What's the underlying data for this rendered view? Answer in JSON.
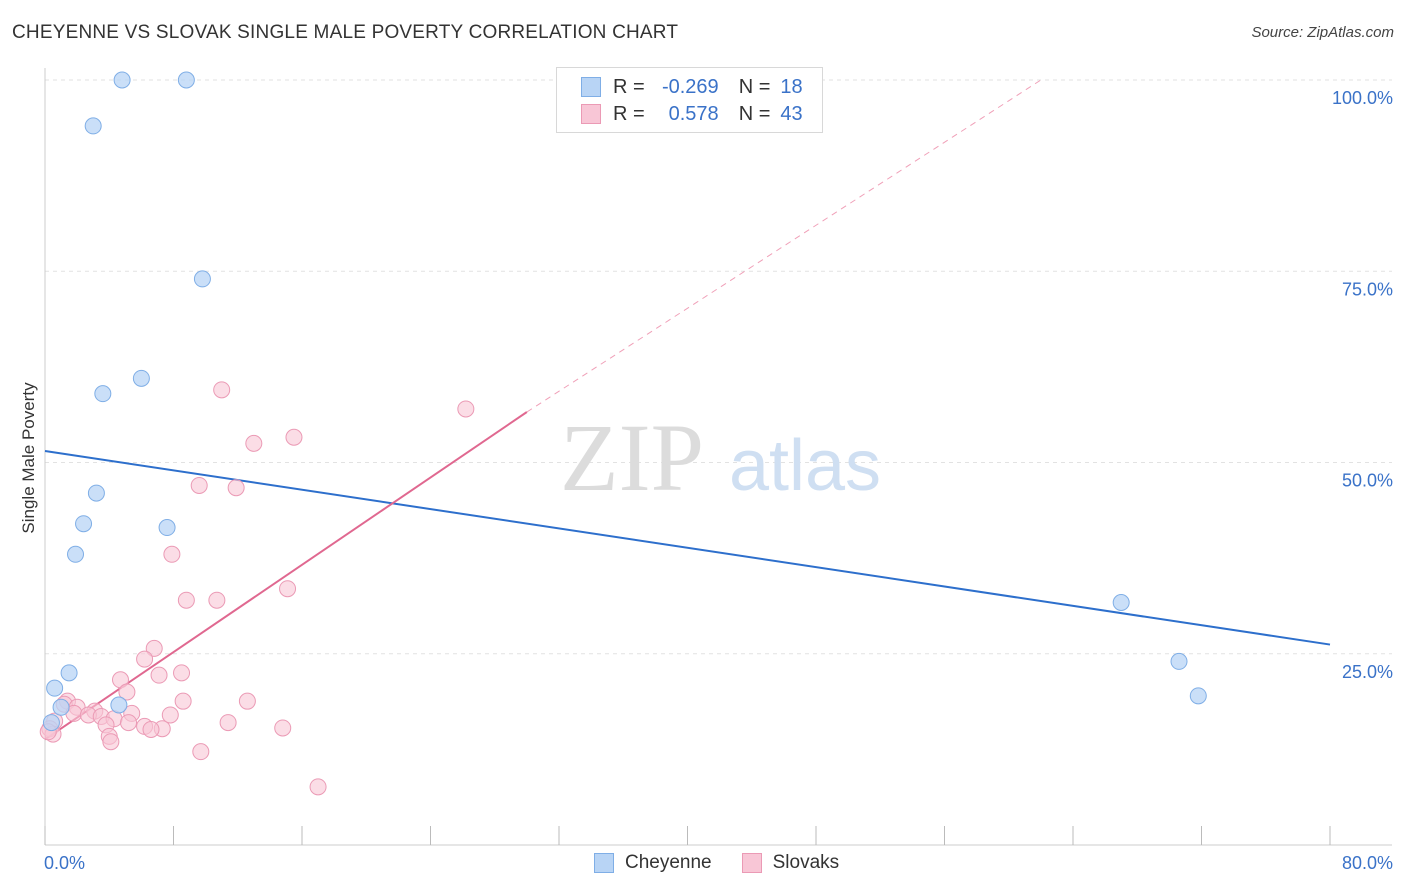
{
  "title": "CHEYENNE VS SLOVAK SINGLE MALE POVERTY CORRELATION CHART",
  "source": "Source: ZipAtlas.com",
  "watermark": {
    "zip": "ZIP",
    "atlas": "atlas"
  },
  "legend": {
    "rows": [
      {
        "r_label": "R =",
        "r_value": "-0.269",
        "n_label": "N =",
        "n_value": "18"
      },
      {
        "r_label": "R =",
        "r_value": "0.578",
        "n_label": "N =",
        "n_value": "43"
      }
    ]
  },
  "bottom_legend": [
    "Cheyenne",
    "Slovaks"
  ],
  "colors": {
    "cheyenne_fill": "#b8d4f5",
    "cheyenne_stroke": "#7faee6",
    "cheyenne_line": "#2d6fcc",
    "slovaks_fill": "#f8c6d6",
    "slovaks_stroke": "#eb9ab5",
    "slovaks_line": "#e06890",
    "tick_label": "#3a72c8"
  },
  "chart_data": {
    "type": "scatter",
    "title": "CHEYENNE VS SLOVAK SINGLE MALE POVERTY CORRELATION CHART",
    "xlabel": "",
    "ylabel": "Single Male Poverty",
    "xlim": [
      0,
      80
    ],
    "ylim": [
      0,
      100
    ],
    "x_tick_labels": [
      "0.0%",
      "80.0%"
    ],
    "y_ticks": [
      25,
      50,
      75,
      100
    ],
    "y_tick_labels": [
      "25.0%",
      "50.0%",
      "75.0%",
      "100.0%"
    ],
    "series": [
      {
        "name": "Cheyenne",
        "r": -0.269,
        "n": 18,
        "points": [
          [
            4.8,
            100
          ],
          [
            8.8,
            100
          ],
          [
            3.0,
            94
          ],
          [
            9.8,
            74
          ],
          [
            6.0,
            61
          ],
          [
            3.6,
            59
          ],
          [
            3.2,
            46
          ],
          [
            2.4,
            42
          ],
          [
            7.6,
            41.5
          ],
          [
            1.9,
            38
          ],
          [
            1.5,
            22.5
          ],
          [
            0.6,
            20.5
          ],
          [
            1.0,
            18
          ],
          [
            4.6,
            18.3
          ],
          [
            0.4,
            16
          ],
          [
            70.6,
            24
          ],
          [
            71.8,
            19.5
          ],
          [
            67.0,
            31.7
          ]
        ],
        "trend": {
          "x": [
            0,
            80
          ],
          "y": [
            51.5,
            26.2
          ]
        }
      },
      {
        "name": "Slovaks",
        "r": 0.578,
        "n": 43,
        "points": [
          [
            26.2,
            57
          ],
          [
            11.0,
            59.5
          ],
          [
            15.5,
            53.3
          ],
          [
            13.0,
            52.5
          ],
          [
            9.6,
            47
          ],
          [
            11.9,
            46.7
          ],
          [
            7.9,
            38
          ],
          [
            15.1,
            33.5
          ],
          [
            8.8,
            32
          ],
          [
            10.7,
            32
          ],
          [
            6.8,
            25.7
          ],
          [
            6.2,
            24.3
          ],
          [
            8.5,
            22.5
          ],
          [
            7.1,
            22.2
          ],
          [
            4.7,
            21.6
          ],
          [
            5.1,
            20
          ],
          [
            1.4,
            18.8
          ],
          [
            8.6,
            18.8
          ],
          [
            12.6,
            18.8
          ],
          [
            1.2,
            18.4
          ],
          [
            2.0,
            18
          ],
          [
            3.1,
            17.5
          ],
          [
            5.4,
            17.2
          ],
          [
            1.8,
            17.2
          ],
          [
            2.7,
            17
          ],
          [
            7.8,
            17
          ],
          [
            3.5,
            16.8
          ],
          [
            4.3,
            16.5
          ],
          [
            0.6,
            16.2
          ],
          [
            5.2,
            16
          ],
          [
            11.4,
            16
          ],
          [
            3.8,
            15.7
          ],
          [
            6.2,
            15.5
          ],
          [
            0.3,
            15.2
          ],
          [
            7.3,
            15.2
          ],
          [
            14.8,
            15.3
          ],
          [
            6.6,
            15.1
          ],
          [
            4.0,
            14.2
          ],
          [
            0.5,
            14.5
          ],
          [
            4.1,
            13.5
          ],
          [
            9.7,
            12.2
          ],
          [
            0.2,
            14.8
          ],
          [
            17.0,
            7.6
          ]
        ],
        "trend": {
          "x": [
            0,
            30
          ],
          "y": [
            13.8,
            56.6
          ]
        },
        "trend_extension": {
          "x": [
            30,
            62
          ],
          "y": [
            56.6,
            100
          ]
        }
      }
    ]
  }
}
